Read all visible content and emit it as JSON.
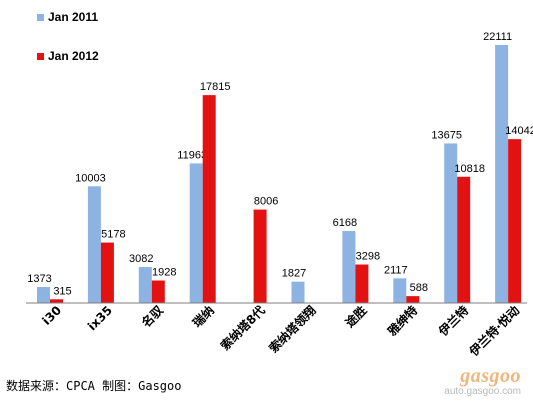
{
  "chart_data": {
    "type": "bar",
    "categories": [
      "i30",
      "ix35",
      "名驭",
      "瑞纳",
      "索纳塔8代",
      "索纳塔领翔",
      "途胜",
      "雅绅特",
      "伊兰特",
      "伊兰特·悦动"
    ],
    "series": [
      {
        "name": "Jan 2011",
        "color": "#8db3e2",
        "values": [
          1373,
          10003,
          3082,
          11963,
          null,
          1827,
          6168,
          2117,
          13675,
          22111
        ]
      },
      {
        "name": "Jan 2012",
        "color": "#e21212",
        "values": [
          315,
          5178,
          1928,
          17815,
          8006,
          null,
          3298,
          588,
          10818,
          14042
        ]
      }
    ],
    "ylim": [
      0,
      22111
    ],
    "legend_position": "top-left",
    "grid": false
  },
  "footer": {
    "source_text": "数据来源：CPCA  制图：Gasgoo"
  },
  "watermark": {
    "logo_text": "gasgoo",
    "url_text": "auto.gasgoo.com"
  }
}
